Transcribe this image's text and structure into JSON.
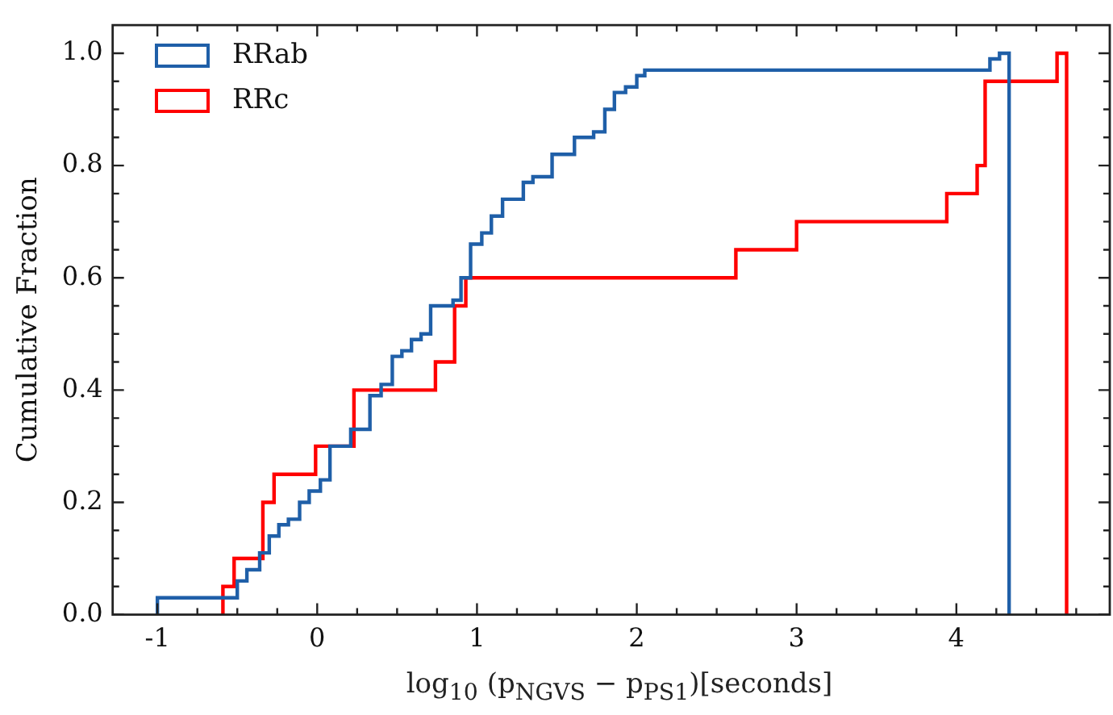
{
  "chart_data": {
    "type": "step",
    "xlabel": "log$_{10}$ (p$_{NGVS}$ − p$_{PS1}$)[seconds]",
    "ylabel": "Cumulative Fraction",
    "xlim": [
      -1.28,
      4.96
    ],
    "ylim": [
      0,
      1.05
    ],
    "xticks": [
      -1,
      {
        "value": -0.75,
        "label": null
      },
      {
        "value": -0.5,
        "label": null
      },
      {
        "value": -0.25,
        "label": null
      },
      0,
      {
        "value": 0.25,
        "label": null
      },
      {
        "value": 0.5,
        "label": null
      },
      {
        "value": 0.75,
        "label": null
      },
      1,
      {
        "value": 1.25,
        "label": null
      },
      {
        "value": 1.5,
        "label": null
      },
      {
        "value": 1.75,
        "label": null
      },
      2,
      {
        "value": 2.25,
        "label": null
      },
      {
        "value": 2.5,
        "label": null
      },
      {
        "value": 2.75,
        "label": null
      },
      3,
      {
        "value": 3.25,
        "label": null
      },
      {
        "value": 3.5,
        "label": null
      },
      {
        "value": 3.75,
        "label": null
      },
      4,
      {
        "value": 4.25,
        "label": null
      },
      {
        "value": 4.5,
        "label": null
      },
      {
        "value": 4.75,
        "label": null
      }
    ],
    "yticks": [
      {
        "value": 0,
        "label": "0.0"
      },
      {
        "value": 0.05,
        "label": null
      },
      {
        "value": 0.1,
        "label": null
      },
      {
        "value": 0.15,
        "label": null
      },
      0.2,
      {
        "value": 0.25,
        "label": null
      },
      {
        "value": 0.3,
        "label": null
      },
      {
        "value": 0.35,
        "label": null
      },
      0.4,
      {
        "value": 0.45,
        "label": null
      },
      {
        "value": 0.5,
        "label": null
      },
      {
        "value": 0.55,
        "label": null
      },
      0.6,
      {
        "value": 0.65,
        "label": null
      },
      {
        "value": 0.7,
        "label": null
      },
      {
        "value": 0.75,
        "label": null
      },
      0.8,
      {
        "value": 0.85,
        "label": null
      },
      {
        "value": 0.9,
        "label": null
      },
      {
        "value": 0.95,
        "label": null
      },
      {
        "value": 1,
        "label": "1.0"
      }
    ],
    "grid": false,
    "legend": "top left",
    "series": [
      {
        "name": "RRab",
        "color": "#1f5fa8",
        "x": [
          -1.0,
          -1.0,
          -0.5,
          -0.44,
          -0.36,
          -0.3,
          -0.24,
          -0.18,
          -0.11,
          -0.05,
          0.02,
          0.08,
          0.21,
          0.33,
          0.4,
          0.47,
          0.53,
          0.59,
          0.65,
          0.71,
          0.85,
          0.9,
          0.96,
          1.03,
          1.09,
          1.16,
          1.29,
          1.35,
          1.47,
          1.61,
          1.73,
          1.8,
          1.86,
          1.93,
          2.0,
          2.05,
          4.21,
          4.27,
          4.33
        ],
        "values": [
          0,
          0.03,
          0.06,
          0.08,
          0.11,
          0.14,
          0.16,
          0.17,
          0.2,
          0.22,
          0.24,
          0.3,
          0.33,
          0.39,
          0.41,
          0.46,
          0.47,
          0.49,
          0.5,
          0.55,
          0.56,
          0.6,
          0.66,
          0.68,
          0.71,
          0.74,
          0.77,
          0.78,
          0.82,
          0.85,
          0.86,
          0.9,
          0.93,
          0.94,
          0.96,
          0.97,
          0.99,
          1.0,
          0
        ]
      },
      {
        "name": "RRc",
        "color": "#ff0000",
        "x": [
          -0.59,
          -0.59,
          -0.52,
          -0.34,
          -0.27,
          -0.01,
          0.23,
          0.74,
          0.86,
          0.93,
          2.62,
          3.0,
          3.94,
          4.13,
          4.18,
          4.63,
          4.69
        ],
        "values": [
          0,
          0.05,
          0.1,
          0.2,
          0.25,
          0.3,
          0.4,
          0.45,
          0.55,
          0.6,
          0.65,
          0.7,
          0.75,
          0.8,
          0.95,
          1.0,
          0
        ]
      }
    ]
  }
}
